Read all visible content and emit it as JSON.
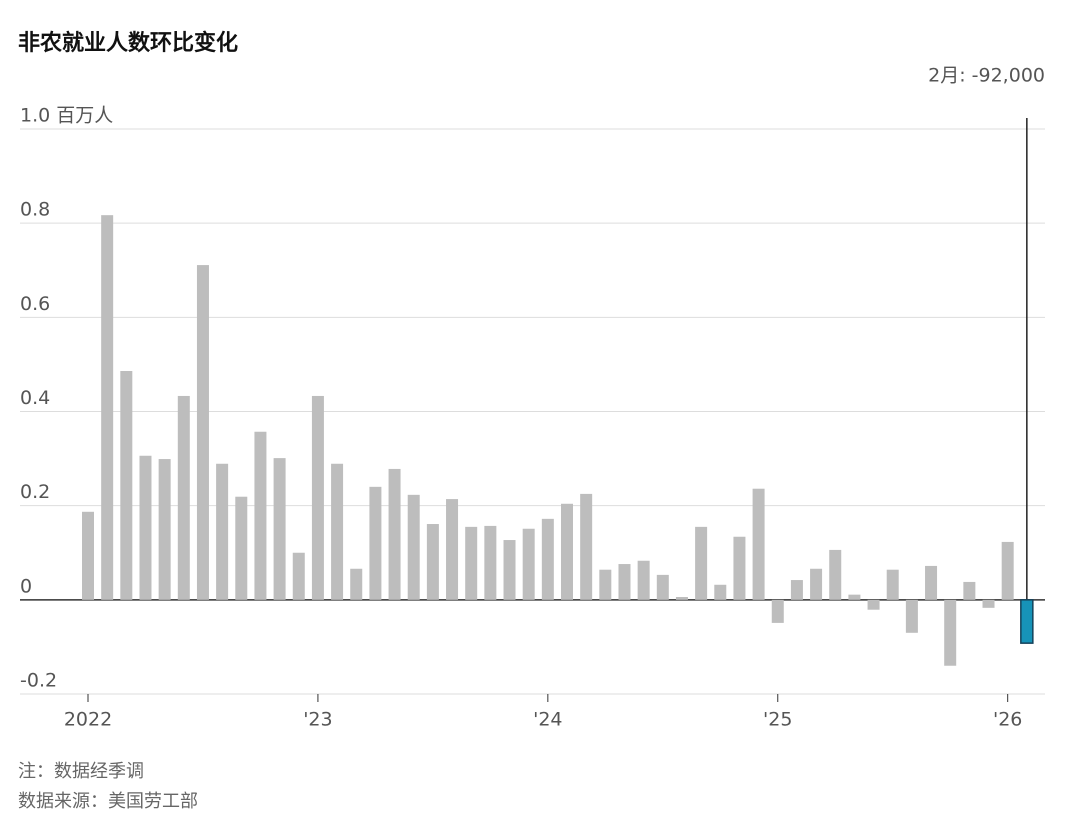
{
  "chart_data": {
    "type": "bar",
    "title": "非农就业人数环比变化",
    "annotation": "2月: -92,000",
    "categories": [
      "2022",
      null,
      null,
      null,
      null,
      null,
      null,
      null,
      null,
      null,
      null,
      null,
      "'23",
      null,
      null,
      null,
      null,
      null,
      null,
      null,
      null,
      null,
      null,
      null,
      "'24",
      null,
      null,
      null,
      null,
      null,
      null,
      null,
      null,
      null,
      null,
      null,
      "'25",
      null,
      null,
      null,
      null,
      null,
      null,
      null,
      null,
      null,
      null,
      null,
      "'26",
      null
    ],
    "values": [
      0.187,
      0.817,
      0.486,
      0.306,
      0.299,
      0.433,
      0.711,
      0.289,
      0.219,
      0.357,
      0.301,
      0.1,
      0.433,
      0.289,
      0.066,
      0.24,
      0.278,
      0.223,
      0.161,
      0.214,
      0.155,
      0.157,
      0.127,
      0.151,
      0.172,
      0.204,
      0.225,
      0.064,
      0.076,
      0.083,
      0.053,
      0.006,
      0.155,
      0.032,
      0.134,
      0.236,
      -0.049,
      0.042,
      0.066,
      0.106,
      0.011,
      -0.021,
      0.064,
      -0.07,
      0.072,
      -0.14,
      0.038,
      -0.017,
      0.123,
      -0.092
    ],
    "color": "#bdbdbd",
    "highlight_color": "#1793b8",
    "highlight_category": "'26",
    "ylim": [
      -0.2,
      1.0
    ],
    "yticks": [
      -0.2,
      0,
      0.2,
      0.4,
      0.6,
      0.8,
      {
        "value": 1.0,
        "label": "1.0 百万人"
      }
    ],
    "grid": true,
    "notes": [
      "注：数据经季调",
      "数据来源：美国劳工部"
    ]
  }
}
